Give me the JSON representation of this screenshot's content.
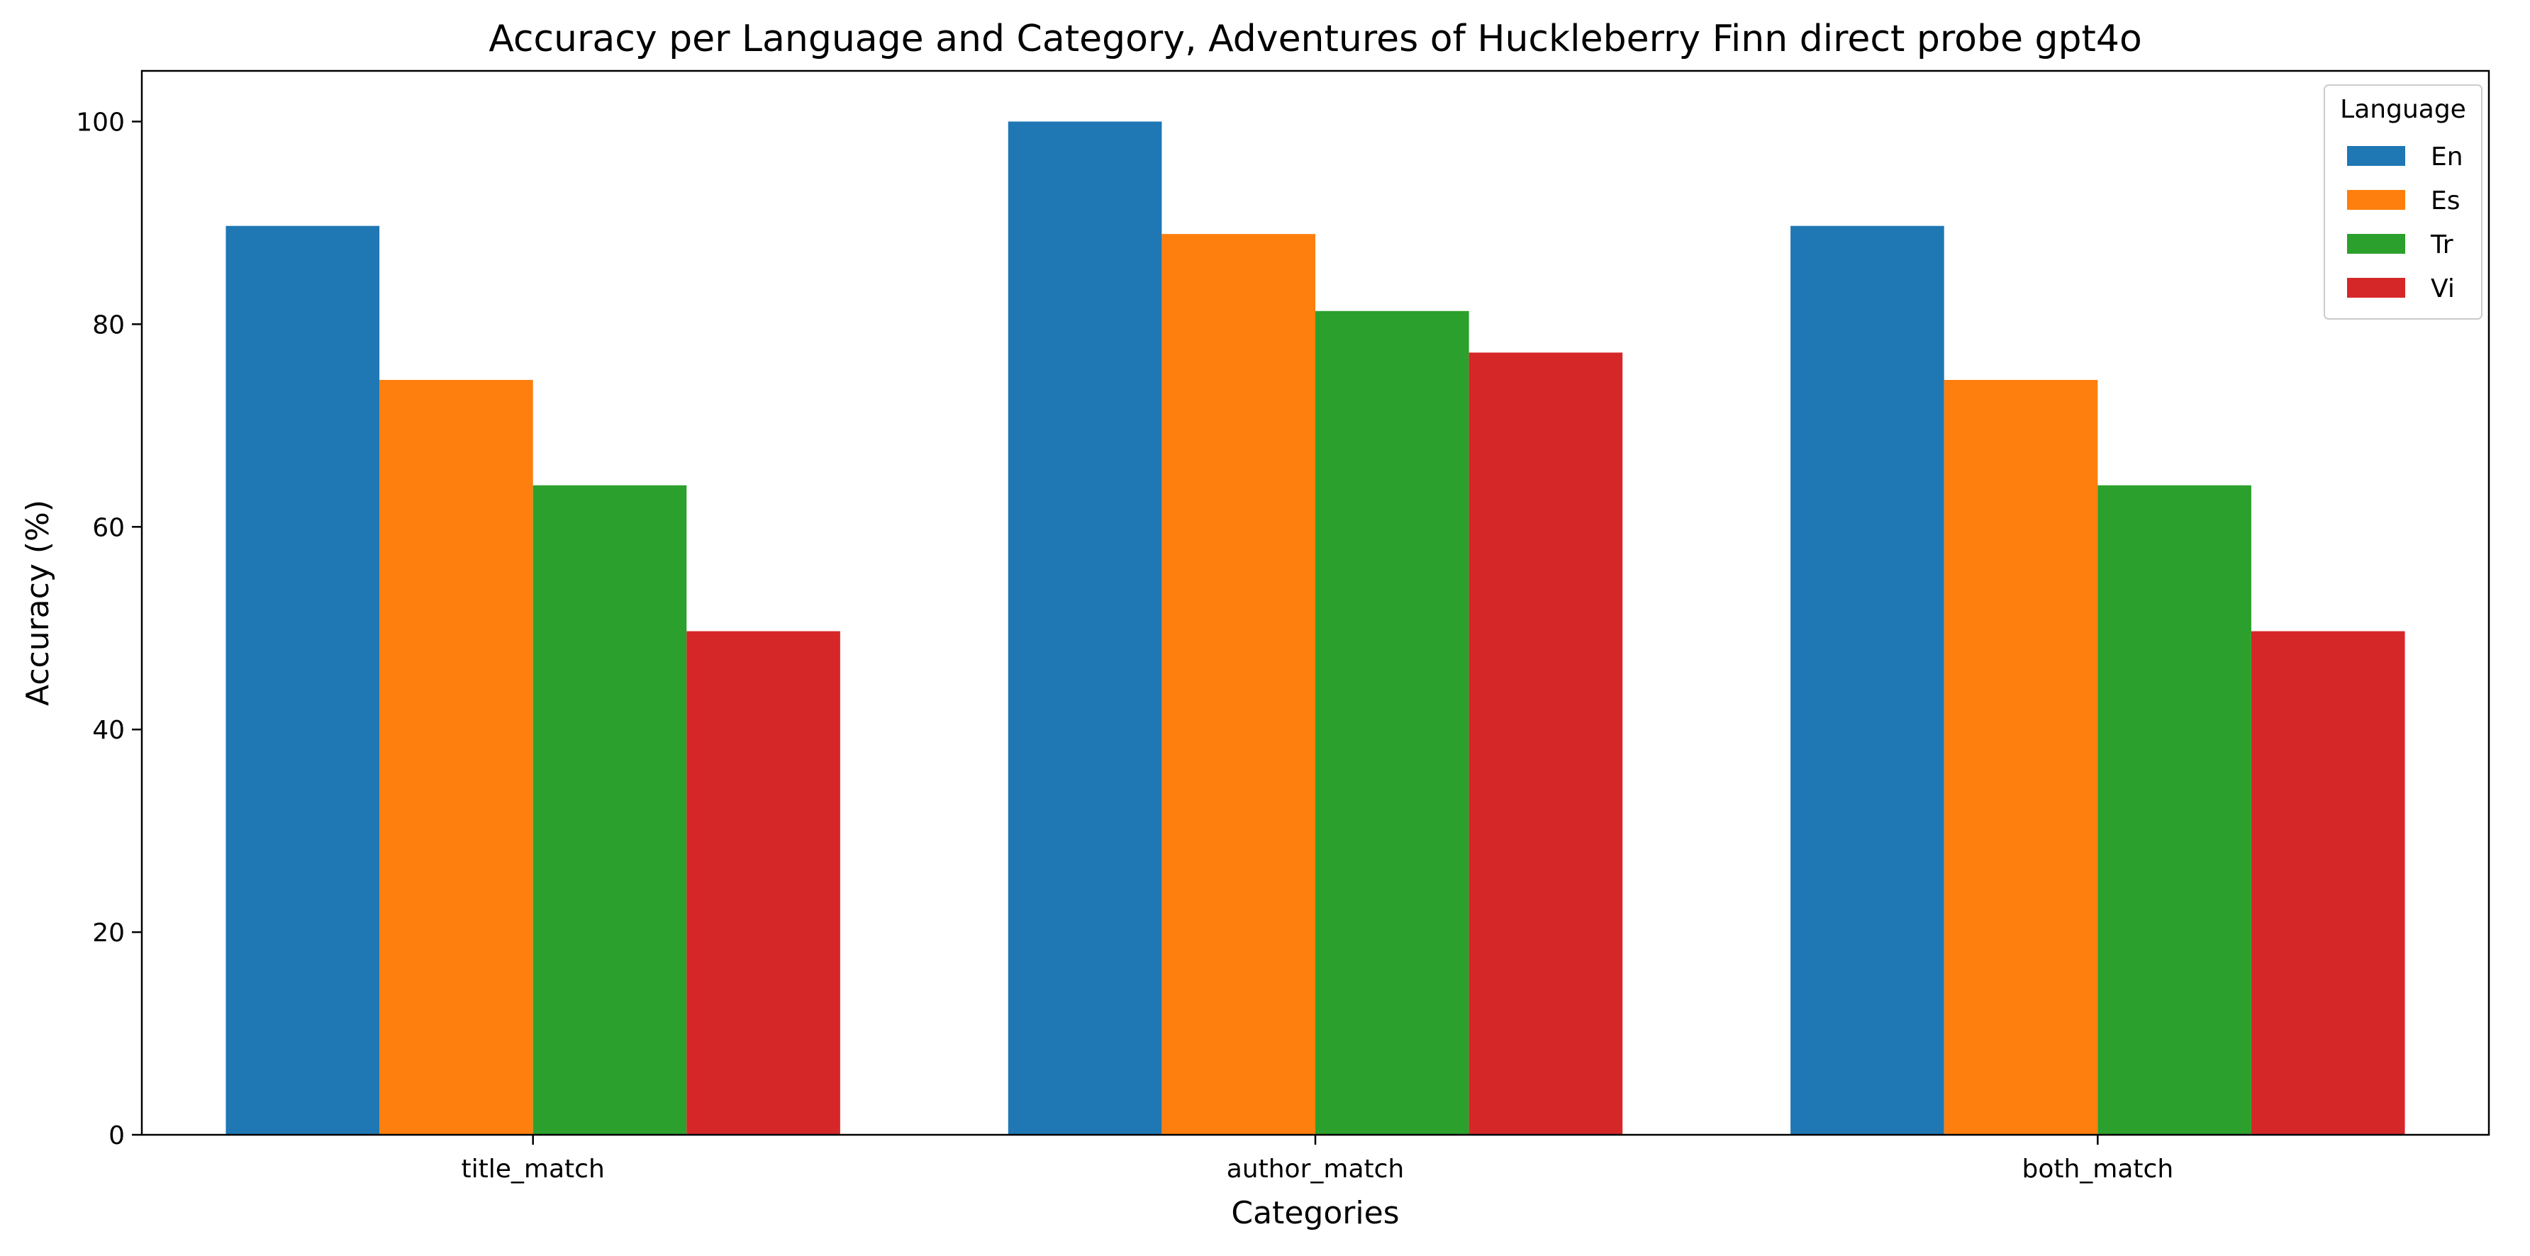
{
  "chart_data": {
    "type": "bar",
    "title": "Accuracy per Language and Category, Adventures of Huckleberry Finn direct probe gpt4o",
    "xlabel": "Categories",
    "ylabel": "Accuracy (%)",
    "categories": [
      "title_match",
      "author_match",
      "both_match"
    ],
    "series": [
      {
        "name": "En",
        "color": "#1f77b4",
        "values": [
          89.7,
          100.0,
          89.7
        ]
      },
      {
        "name": "Es",
        "color": "#ff7f0e",
        "values": [
          74.5,
          88.9,
          74.5
        ]
      },
      {
        "name": "Tr",
        "color": "#2ca02c",
        "values": [
          64.1,
          81.3,
          64.1
        ]
      },
      {
        "name": "Vi",
        "color": "#d62728",
        "values": [
          49.7,
          77.2,
          49.7
        ]
      }
    ],
    "ylim": [
      0,
      105
    ],
    "yticks": [
      "0",
      "20",
      "40",
      "60",
      "80",
      "100"
    ],
    "grid": false,
    "legend": {
      "title": "Language",
      "position": "top-right"
    }
  }
}
